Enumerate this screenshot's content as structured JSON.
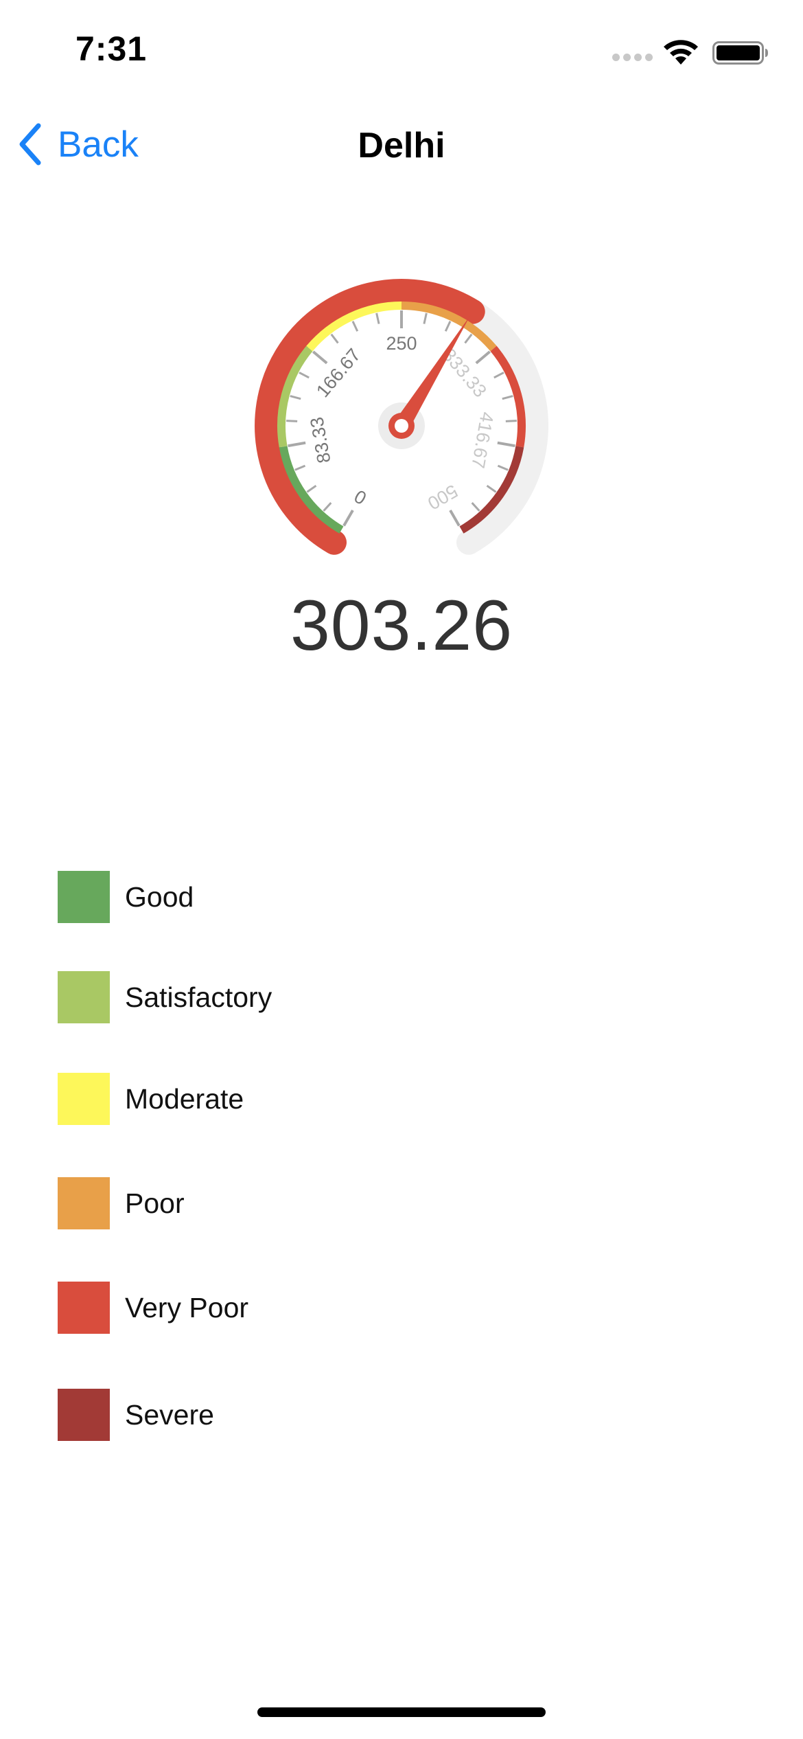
{
  "status_bar": {
    "time": "7:31"
  },
  "nav": {
    "back_label": "Back",
    "title": "Delhi"
  },
  "gauge": {
    "value": 303.26,
    "value_text": "303.26",
    "min": 0,
    "max": 500,
    "tick_labels": [
      "0",
      "83.33",
      "166.67",
      "250",
      "333.33",
      "416.67",
      "500"
    ],
    "band_colors": [
      "#67a85c",
      "#a9c864",
      "#fdf75a",
      "#e8a049",
      "#d94d3d",
      "#a23a36"
    ],
    "progress_color": "#d94d3d",
    "track_color": "#f0f0f0",
    "needle_color": "#d94d3d"
  },
  "legend": {
    "items": [
      {
        "label": "Good",
        "color": "#67a85c"
      },
      {
        "label": "Satisfactory",
        "color": "#a9c864"
      },
      {
        "label": "Moderate",
        "color": "#fdf75a"
      },
      {
        "label": "Poor",
        "color": "#e8a049"
      },
      {
        "label": "Very Poor",
        "color": "#d94d3d"
      },
      {
        "label": "Severe",
        "color": "#a23a36"
      }
    ]
  }
}
